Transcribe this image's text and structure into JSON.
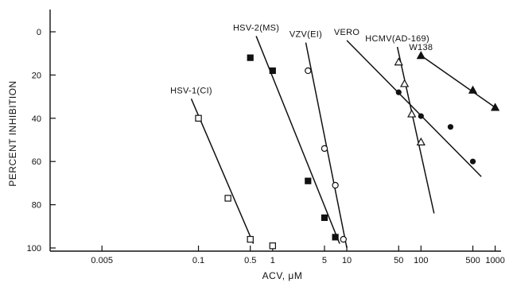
{
  "chart_data": {
    "type": "scatter",
    "title": "",
    "xlabel": "ACV, μM",
    "ylabel": "PERCENT INHIBITION",
    "x_scale": "log",
    "y_inverted": true,
    "xlim": [
      0.001,
      1200
    ],
    "ylim": [
      0,
      100
    ],
    "x_ticks": [
      {
        "value": 0.005,
        "label": "0.005"
      },
      {
        "value": 0.1,
        "label": "0.1"
      },
      {
        "value": 0.5,
        "label": "0.5"
      },
      {
        "value": 1,
        "label": "1"
      },
      {
        "value": 5,
        "label": "5"
      },
      {
        "value": 10,
        "label": "10"
      },
      {
        "value": 50,
        "label": "50"
      },
      {
        "value": 100,
        "label": "100"
      },
      {
        "value": 500,
        "label": "500"
      },
      {
        "value": 1000,
        "label": "1000"
      }
    ],
    "y_ticks": [
      {
        "value": 0,
        "label": "0"
      },
      {
        "value": 20,
        "label": "20"
      },
      {
        "value": 40,
        "label": "40"
      },
      {
        "value": 60,
        "label": "60"
      },
      {
        "value": 80,
        "label": "80"
      },
      {
        "value": 100,
        "label": "100"
      }
    ],
    "grid": false,
    "series": [
      {
        "name": "HSV-1(CI)",
        "marker": "open-square",
        "points": [
          [
            0.1,
            40
          ],
          [
            0.25,
            77
          ],
          [
            0.5,
            96
          ],
          [
            1,
            99
          ]
        ],
        "fit": [
          [
            0.08,
            31
          ],
          [
            0.55,
            98
          ]
        ]
      },
      {
        "name": "HSV-2(MS)",
        "marker": "filled-square",
        "points": [
          [
            0.5,
            12
          ],
          [
            1,
            18
          ],
          [
            3,
            69
          ],
          [
            5,
            86
          ],
          [
            7,
            95
          ]
        ],
        "fit": [
          [
            0.6,
            2
          ],
          [
            8,
            98
          ]
        ]
      },
      {
        "name": "VZV(EI)",
        "marker": "open-circle",
        "points": [
          [
            3,
            18
          ],
          [
            5,
            54
          ],
          [
            7,
            71
          ],
          [
            9,
            96
          ]
        ],
        "fit": [
          [
            2.8,
            5
          ],
          [
            10,
            100
          ]
        ]
      },
      {
        "name": "VERO",
        "marker": "filled-circle",
        "points": [
          [
            50,
            28
          ],
          [
            100,
            39
          ],
          [
            250,
            44
          ],
          [
            500,
            60
          ]
        ],
        "fit": [
          [
            10,
            4
          ],
          [
            650,
            67
          ]
        ]
      },
      {
        "name": "HCMV(AD-169)",
        "marker": "open-triangle",
        "points": [
          [
            50,
            14
          ],
          [
            60,
            24
          ],
          [
            75,
            38
          ],
          [
            100,
            51
          ]
        ],
        "fit": [
          [
            48,
            7
          ],
          [
            150,
            84
          ]
        ]
      },
      {
        "name": "W138",
        "marker": "filled-triangle",
        "points": [
          [
            100,
            11
          ],
          [
            500,
            27
          ],
          [
            1000,
            35
          ]
        ],
        "fit": [
          [
            100,
            11
          ],
          [
            1000,
            35
          ]
        ]
      }
    ]
  }
}
